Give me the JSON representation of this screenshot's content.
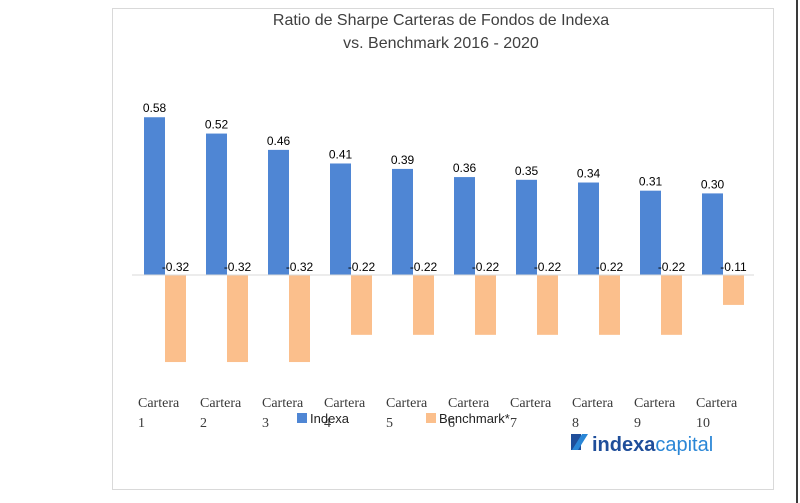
{
  "chart_data": {
    "type": "bar",
    "title": [
      "Ratio de Sharpe Carteras de Fondos de Indexa",
      "vs. Benchmark 2016 - 2020"
    ],
    "categories": [
      [
        "Cartera",
        "1"
      ],
      [
        "Cartera",
        "2"
      ],
      [
        "Cartera",
        "3"
      ],
      [
        "Cartera",
        "4"
      ],
      [
        "Cartera",
        "5"
      ],
      [
        "Cartera",
        "6"
      ],
      [
        "Cartera",
        "7"
      ],
      [
        "Cartera",
        "8"
      ],
      [
        "Cartera",
        "9"
      ],
      [
        "Cartera",
        "10"
      ]
    ],
    "series": [
      {
        "name": "Indexa",
        "color": "#4f86d4",
        "values": [
          0.58,
          0.52,
          0.46,
          0.41,
          0.39,
          0.36,
          0.35,
          0.34,
          0.31,
          0.3
        ],
        "labels": [
          "0.58",
          "0.52",
          "0.46",
          "0.41",
          "0.39",
          "0.36",
          "0.35",
          "0.34",
          "0.31",
          "0.30"
        ]
      },
      {
        "name": "Benchmark*",
        "color": "#fbbf8c",
        "values": [
          -0.32,
          -0.32,
          -0.32,
          -0.22,
          -0.22,
          -0.22,
          -0.22,
          -0.22,
          -0.22,
          -0.11
        ],
        "labels": [
          "-0.32",
          "-0.32",
          "-0.32",
          "-0.22",
          "-0.22",
          "-0.22",
          "-0.22",
          "-0.22",
          "-0.22",
          "-0.11"
        ]
      }
    ],
    "ylim": [
      -0.4,
      0.6
    ],
    "xlabel": "",
    "ylabel": "",
    "grid": false,
    "legend_position": "bottom"
  },
  "logo": {
    "brand_dark": "indexa",
    "brand_light": "capital"
  }
}
